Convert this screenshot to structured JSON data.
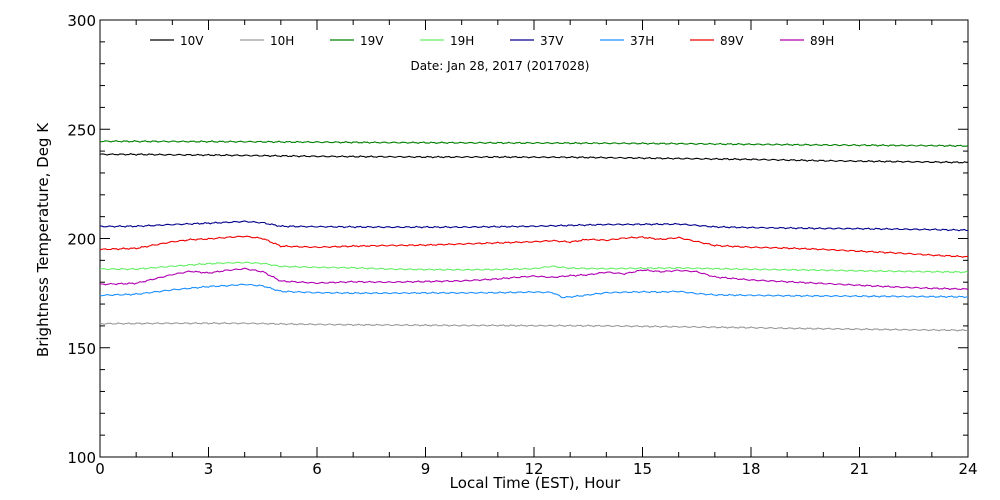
{
  "chart_data": {
    "type": "line",
    "title": "",
    "subtitle": "Date: Jan 28, 2017 (2017028)",
    "xlabel": "Local Time (EST), Hour",
    "ylabel": "Brightness Temperature, Deg K",
    "xlim": [
      0,
      24
    ],
    "ylim": [
      100,
      300
    ],
    "xticks": [
      0,
      3,
      6,
      9,
      12,
      15,
      18,
      21,
      24
    ],
    "yticks": [
      100,
      150,
      200,
      250,
      300
    ],
    "grid": false,
    "legend_placement": "top",
    "series": [
      {
        "name": "10V",
        "color": "#000000",
        "x": [
          0,
          1,
          2,
          3,
          4,
          5,
          6,
          7,
          8,
          9,
          10,
          11,
          12,
          13,
          14,
          15,
          16,
          17,
          18,
          19,
          20,
          21,
          22,
          23,
          24
        ],
        "y": [
          238.5,
          238.5,
          238.3,
          238.2,
          238.0,
          237.8,
          237.6,
          237.5,
          237.4,
          237.3,
          237.3,
          237.3,
          237.2,
          237.2,
          237.0,
          236.8,
          236.6,
          236.4,
          236.2,
          235.9,
          235.6,
          235.4,
          235.2,
          235.0,
          234.8
        ]
      },
      {
        "name": "10H",
        "color": "#9a9a9a",
        "x": [
          0,
          1,
          2,
          3,
          4,
          5,
          6,
          7,
          8,
          9,
          10,
          11,
          12,
          13,
          14,
          15,
          16,
          17,
          18,
          19,
          20,
          21,
          22,
          23,
          24
        ],
        "y": [
          161.0,
          161.1,
          161.2,
          161.2,
          161.2,
          160.9,
          160.7,
          160.5,
          160.4,
          160.3,
          160.2,
          160.2,
          160.1,
          160.1,
          160.0,
          159.8,
          159.6,
          159.4,
          159.2,
          158.9,
          158.7,
          158.5,
          158.3,
          158.1,
          158.0
        ]
      },
      {
        "name": "19V",
        "color": "#008000",
        "x": [
          0,
          2,
          4,
          6,
          8,
          10,
          12,
          14,
          16,
          18,
          20,
          22,
          24
        ],
        "y": [
          244.5,
          244.4,
          244.3,
          244.1,
          243.9,
          243.8,
          243.7,
          243.6,
          243.4,
          243.1,
          242.8,
          242.6,
          242.4
        ]
      },
      {
        "name": "19H",
        "color": "#66ee66",
        "x": [
          0,
          1,
          2,
          3,
          3.5,
          4,
          4.5,
          5,
          6,
          7,
          8,
          9,
          10,
          11,
          12,
          12.5,
          13,
          14,
          15,
          16,
          17,
          18,
          19,
          20,
          21,
          22,
          23,
          24
        ],
        "y": [
          186.0,
          186.0,
          187.3,
          188.5,
          188.8,
          189.0,
          188.6,
          187.2,
          186.8,
          186.6,
          186.0,
          185.8,
          185.7,
          185.8,
          186.2,
          187.3,
          186.4,
          186.2,
          186.4,
          186.5,
          186.2,
          185.9,
          185.7,
          185.5,
          185.2,
          185.0,
          184.8,
          184.6
        ]
      },
      {
        "name": "37V",
        "color": "#00008b",
        "x": [
          0,
          1,
          2,
          3,
          3.5,
          4,
          4.5,
          5,
          6,
          7,
          8,
          9,
          10,
          11,
          12,
          13,
          14,
          15,
          16,
          16.5,
          17,
          18,
          19,
          20,
          21,
          22,
          23,
          24
        ],
        "y": [
          205.5,
          205.6,
          206.4,
          207.0,
          207.4,
          207.8,
          207.2,
          205.6,
          205.4,
          205.3,
          205.2,
          205.2,
          205.2,
          205.4,
          205.6,
          206.0,
          206.4,
          206.5,
          206.6,
          206.0,
          205.3,
          205.0,
          204.8,
          204.6,
          204.5,
          204.3,
          204.1,
          203.8
        ]
      },
      {
        "name": "37H",
        "color": "#1e90ff",
        "x": [
          0,
          1,
          2,
          3,
          3.5,
          4,
          4.5,
          5,
          6,
          7,
          8,
          9,
          10,
          11,
          12,
          12.5,
          12.8,
          13.2,
          14,
          14.5,
          15,
          15.5,
          16,
          16.5,
          17,
          18,
          19,
          20,
          21,
          22,
          23,
          24
        ],
        "y": [
          174.0,
          174.5,
          176.5,
          178.0,
          178.4,
          179.0,
          178.3,
          175.8,
          175.2,
          175.0,
          175.0,
          175.1,
          175.1,
          175.2,
          175.5,
          175.3,
          173.0,
          173.6,
          175.2,
          175.4,
          175.6,
          175.5,
          175.8,
          174.8,
          174.2,
          174.0,
          173.8,
          173.7,
          173.6,
          173.5,
          173.4,
          173.3
        ]
      },
      {
        "name": "89V",
        "color": "#ee0000",
        "x": [
          0,
          1,
          2,
          2.5,
          3,
          3.5,
          4,
          4.5,
          5,
          6,
          7,
          8,
          9,
          10,
          11,
          12,
          12.5,
          13,
          13.5,
          14,
          14.5,
          15,
          15.5,
          16,
          16.5,
          17,
          18,
          19,
          20,
          21,
          22,
          23,
          24
        ],
        "y": [
          195.0,
          195.5,
          198.5,
          199.5,
          199.8,
          200.5,
          201.0,
          200.0,
          196.5,
          196.0,
          196.5,
          196.8,
          197.0,
          197.5,
          198.0,
          198.5,
          199.0,
          198.4,
          199.6,
          199.2,
          200.2,
          200.6,
          199.6,
          200.4,
          198.6,
          196.8,
          196.0,
          195.6,
          195.0,
          194.2,
          193.4,
          192.4,
          191.6
        ]
      },
      {
        "name": "89H",
        "color": "#b000b0",
        "x": [
          0,
          1,
          2,
          2.5,
          3,
          3.5,
          4,
          4.5,
          5,
          6,
          7,
          8,
          9,
          10,
          11,
          11.5,
          12,
          12.5,
          13,
          13.5,
          14,
          14.5,
          15,
          15.5,
          16,
          16.5,
          17,
          18,
          19,
          20,
          21,
          22,
          23,
          24
        ],
        "y": [
          179.0,
          179.5,
          183.5,
          185.0,
          184.2,
          185.4,
          186.2,
          184.8,
          180.5,
          179.6,
          180.2,
          180.0,
          180.3,
          180.6,
          181.5,
          182.2,
          182.8,
          182.2,
          183.0,
          183.4,
          184.6,
          183.8,
          185.6,
          184.8,
          185.4,
          184.8,
          182.4,
          181.0,
          180.2,
          179.4,
          178.6,
          177.8,
          177.2,
          176.8
        ]
      }
    ]
  }
}
